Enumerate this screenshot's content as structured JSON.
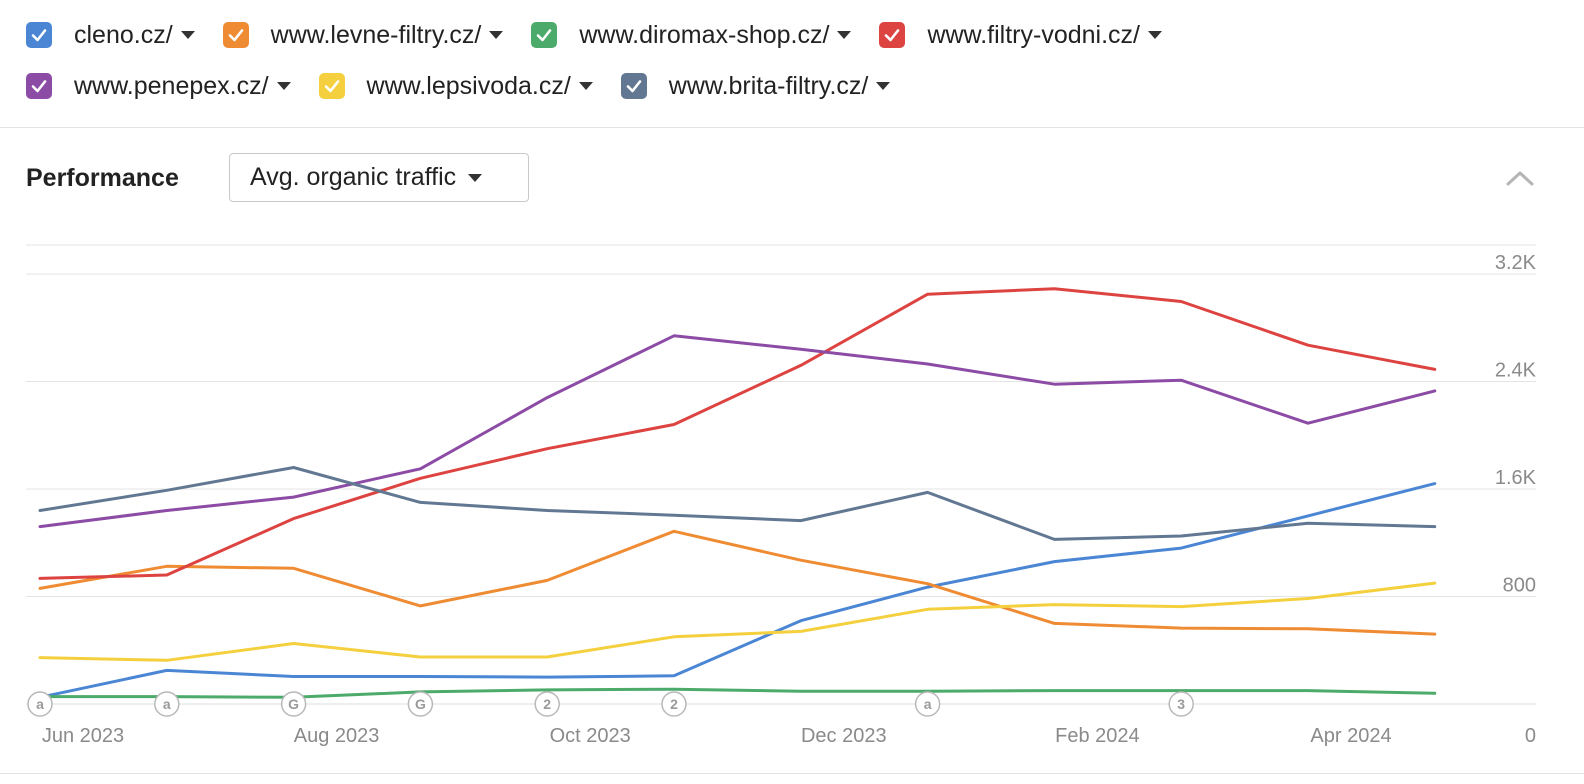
{
  "legend": {
    "row1": [
      {
        "label": "cleno.cz/",
        "color": "#4a86d4"
      },
      {
        "label": "www.levne-filtry.cz/",
        "color": "#ef8c33"
      },
      {
        "label": "www.diromax-shop.cz/",
        "color": "#4caa6a"
      },
      {
        "label": "www.filtry-vodni.cz/",
        "color": "#dd4340"
      }
    ],
    "row2": [
      {
        "label": "www.penepex.cz/",
        "color": "#8c4ba5"
      },
      {
        "label": "www.lepsivoda.cz/",
        "color": "#f5d03e"
      },
      {
        "label": "www.brita-filtry.cz/",
        "color": "#627892"
      }
    ]
  },
  "performance": {
    "title": "Performance",
    "metric": "Avg. organic traffic",
    "collapse_icon": "chevron-up-icon"
  },
  "chart_data": {
    "type": "line",
    "x": [
      "2023-06",
      "2023-07",
      "2023-08",
      "2023-09",
      "2023-10",
      "2023-11",
      "2023-12",
      "2024-01",
      "2024-02",
      "2024-03",
      "2024-04",
      "2024-05"
    ],
    "x_tick_labels": [
      "Jun 2023",
      "Aug 2023",
      "Oct 2023",
      "Dec 2023",
      "Feb 2024",
      "Apr 2024"
    ],
    "y_tick_labels": [
      "3.2K",
      "2.4K",
      "1.6K",
      "800",
      "0"
    ],
    "ylim": [
      0,
      3200
    ],
    "grid": true,
    "y_axis_side": "right",
    "series": [
      {
        "name": "cleno.cz/",
        "color": "#4a86d4",
        "values": [
          50,
          250,
          205,
          205,
          200,
          210,
          620,
          870,
          1060,
          1160,
          1400,
          1640
        ]
      },
      {
        "name": "www.levne-filtry.cz/",
        "color": "#ef8c33",
        "values": [
          860,
          1025,
          1010,
          730,
          920,
          1285,
          1070,
          895,
          600,
          565,
          560,
          520
        ]
      },
      {
        "name": "www.diromax-shop.cz/",
        "color": "#4caa6a",
        "values": [
          55,
          55,
          50,
          90,
          105,
          110,
          95,
          95,
          100,
          100,
          100,
          80
        ]
      },
      {
        "name": "www.filtry-vodni.cz/",
        "color": "#dd4340",
        "values": [
          935,
          960,
          1380,
          1680,
          1900,
          2080,
          2520,
          3050,
          3090,
          2995,
          2670,
          2490
        ]
      },
      {
        "name": "www.penepex.cz/",
        "color": "#8c4ba5",
        "values": [
          1320,
          1440,
          1540,
          1750,
          2280,
          2740,
          2640,
          2530,
          2380,
          2410,
          2090,
          2330
        ]
      },
      {
        "name": "www.lepsivoda.cz/",
        "color": "#f5d03e",
        "values": [
          345,
          325,
          450,
          350,
          350,
          500,
          540,
          705,
          740,
          725,
          785,
          900
        ]
      },
      {
        "name": "www.brita-filtry.cz/",
        "color": "#627892",
        "values": [
          1440,
          1590,
          1760,
          1500,
          1440,
          1405,
          1365,
          1575,
          1225,
          1250,
          1345,
          1320
        ]
      }
    ],
    "annotations": [
      {
        "x": "2023-06",
        "label": "a"
      },
      {
        "x": "2023-07",
        "label": "a"
      },
      {
        "x": "2023-08",
        "label": "G"
      },
      {
        "x": "2023-09",
        "label": "G"
      },
      {
        "x": "2023-10",
        "label": "2"
      },
      {
        "x": "2023-11",
        "label": "2"
      },
      {
        "x": "2024-01",
        "label": "a"
      },
      {
        "x": "2024-03",
        "label": "3"
      }
    ]
  }
}
